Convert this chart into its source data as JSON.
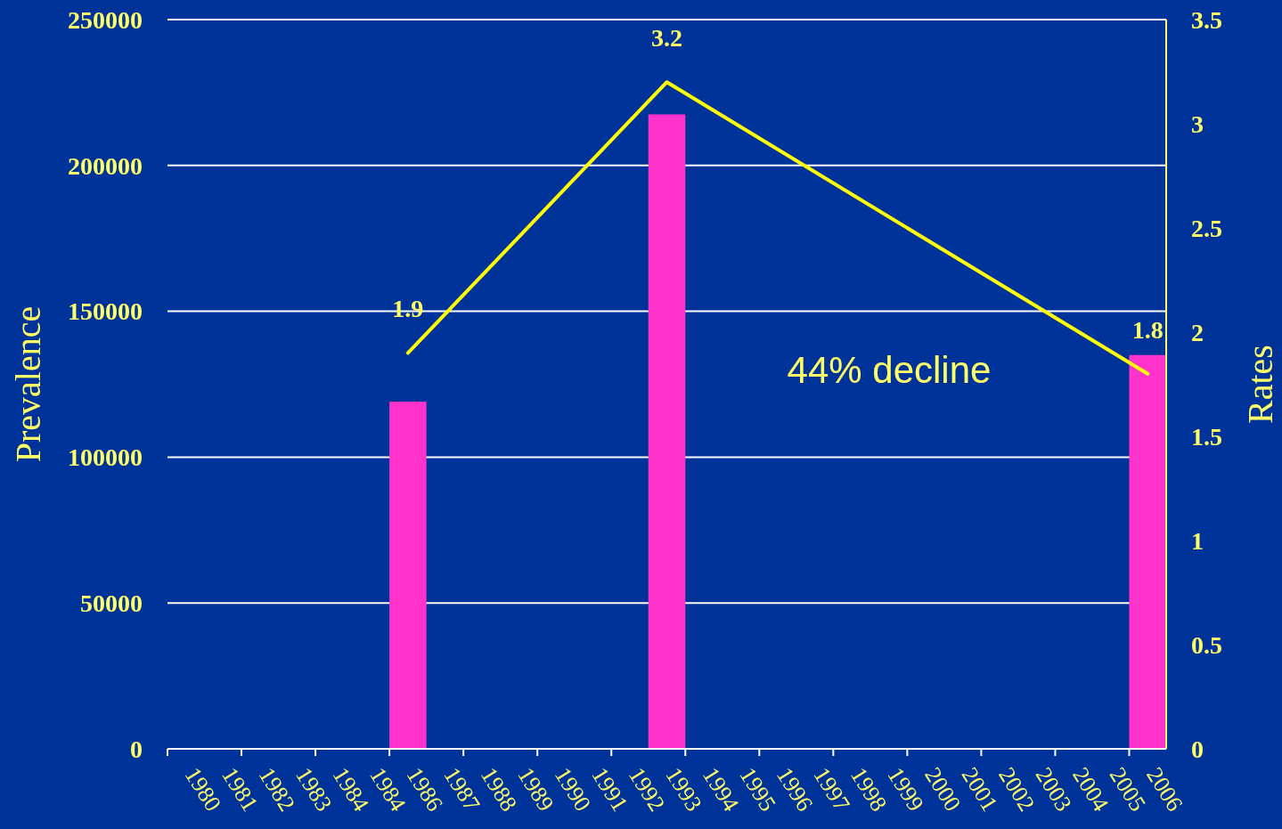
{
  "chart_data": {
    "type": "bar",
    "ylabel": "Prevalence",
    "y2label": "Rates",
    "categories": [
      "1980",
      "1981",
      "1982",
      "1983",
      "1984",
      "1984",
      "1986",
      "1987",
      "1988",
      "1989",
      "1990",
      "1991",
      "1992",
      "1993",
      "1994",
      "1995",
      "1996",
      "1997",
      "1998",
      "1999",
      "2000",
      "2001",
      "2002",
      "2003",
      "2004",
      "2005",
      "2006"
    ],
    "series": [
      {
        "color": "#ff33cc",
        "values": [
          null,
          null,
          null,
          null,
          null,
          null,
          119000,
          null,
          null,
          null,
          null,
          null,
          null,
          217500,
          null,
          null,
          null,
          null,
          null,
          null,
          null,
          null,
          null,
          null,
          null,
          null,
          135000
        ]
      },
      {
        "type": "line",
        "axis": "y2",
        "color": "#ffff00",
        "values": [
          null,
          null,
          null,
          null,
          null,
          null,
          1.9,
          null,
          null,
          null,
          null,
          null,
          null,
          3.2,
          null,
          null,
          null,
          null,
          null,
          null,
          null,
          null,
          null,
          null,
          null,
          null,
          1.8
        ],
        "value_labels": [
          null,
          null,
          null,
          null,
          null,
          null,
          "1.9",
          null,
          null,
          null,
          null,
          null,
          null,
          "3.2",
          null,
          null,
          null,
          null,
          null,
          null,
          null,
          null,
          null,
          null,
          null,
          null,
          "1.8"
        ]
      }
    ],
    "ylim": [
      0,
      250000
    ],
    "yticks": [
      0,
      50000,
      100000,
      150000,
      200000,
      250000
    ],
    "y2lim": [
      0,
      3.5
    ],
    "y2ticks": [
      0,
      0.5,
      1,
      1.5,
      2,
      2.5,
      3,
      3.5
    ],
    "grid": "y",
    "marker": "none",
    "annotations": [
      "44% decline"
    ]
  }
}
